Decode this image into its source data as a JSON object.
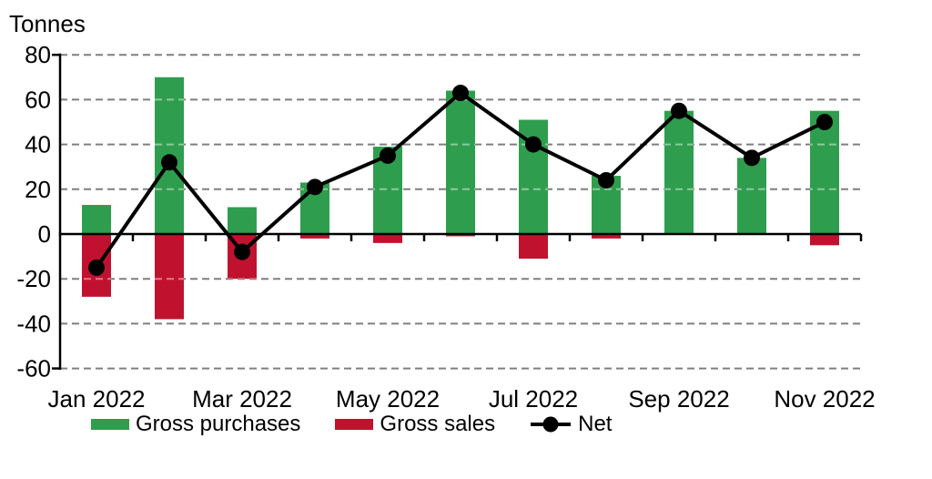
{
  "chart_data": {
    "type": "combo-bar-line",
    "ylabel": "Tonnes",
    "xlabel": "",
    "ylim": [
      -60,
      80
    ],
    "y_ticks": [
      80,
      60,
      40,
      20,
      0,
      -20,
      -40,
      -60
    ],
    "n_months": 11,
    "x_tick_labels": [
      "Jan 2022",
      "Mar 2022",
      "May 2022",
      "Jul 2022",
      "Sep 2022",
      "Nov 2022"
    ],
    "x_tick_month_indices": [
      0,
      2,
      4,
      6,
      8,
      10
    ],
    "grid": "horizontal-dashed",
    "legend_position": "bottom",
    "series": [
      {
        "name": "Gross purchases",
        "type": "bar",
        "color": "#2E9E4E",
        "values": [
          13,
          70,
          12,
          23,
          39,
          64,
          51,
          26,
          55,
          34,
          55
        ]
      },
      {
        "name": "Gross sales",
        "type": "bar",
        "color": "#C0122E",
        "values": [
          -28,
          -38,
          -20,
          -2,
          -4,
          -1,
          -11,
          -2,
          0,
          0,
          -5
        ]
      },
      {
        "name": "Net",
        "type": "line",
        "marker": "circle",
        "color": "#000000",
        "values": [
          -15,
          32,
          -8,
          21,
          35,
          63,
          40,
          24,
          55,
          34,
          50
        ]
      }
    ],
    "colors": {
      "grid": "#7F7F7F",
      "axis": "#000000",
      "text": "#000000",
      "background": "#FFFFFF"
    }
  }
}
